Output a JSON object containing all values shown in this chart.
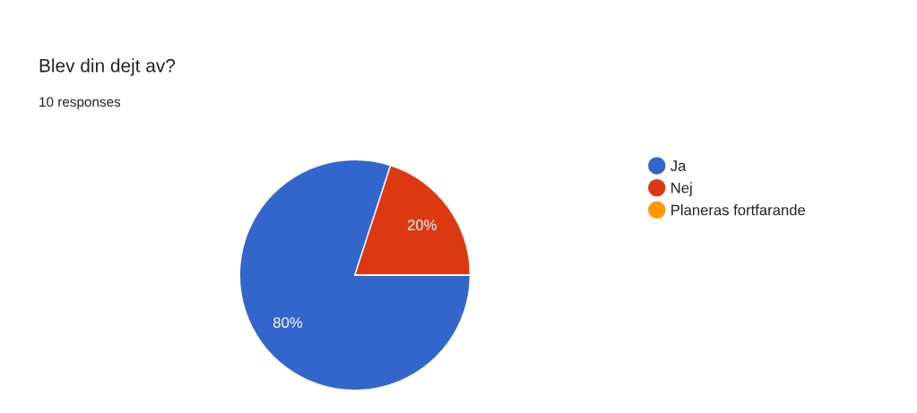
{
  "chart_data": {
    "type": "pie",
    "title": "Blev din dejt av?",
    "subtitle": "10 responses",
    "categories": [
      "Ja",
      "Nej",
      "Planeras fortfarande"
    ],
    "values": [
      80,
      20,
      0
    ],
    "colors": [
      "#3366cc",
      "#dc3912",
      "#ff9900"
    ],
    "value_labels": [
      "80%",
      "20%",
      null
    ],
    "legend": "right"
  }
}
